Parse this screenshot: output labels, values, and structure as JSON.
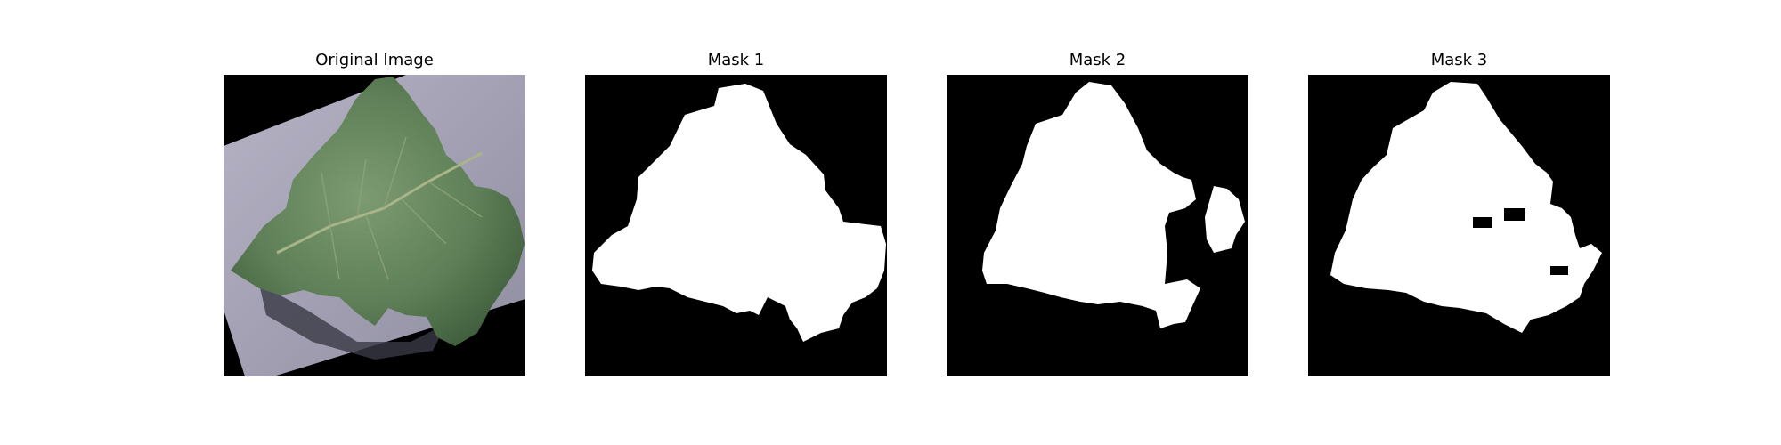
{
  "figure": {
    "panels": [
      {
        "title": "Original Image"
      },
      {
        "title": "Mask 1"
      },
      {
        "title": "Mask 2"
      },
      {
        "title": "Mask 3"
      }
    ]
  },
  "colors": {
    "background": "#ffffff",
    "mask_background": "#000000",
    "mask_foreground": "#ffffff",
    "leaf": "#5e7f57",
    "paper": "#a8a6b8"
  }
}
